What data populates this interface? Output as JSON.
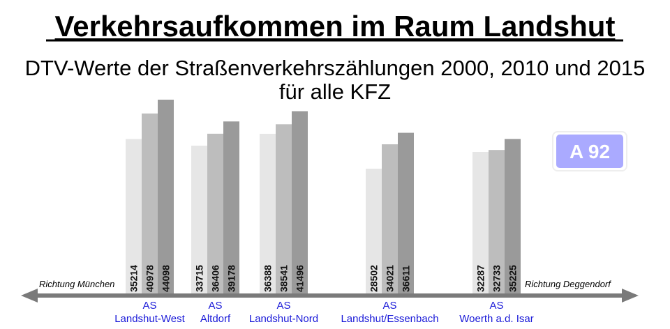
{
  "chart_data": {
    "type": "bar",
    "title": "Verkehrsaufkommen im Raum Landshut",
    "subtitle_line1": "DTV-Werte der Straßenverkehrszählungen 2000, 2010 und 2015",
    "subtitle_line2": "für alle KFZ",
    "categories": [
      {
        "top": "AS",
        "bottom": "Landshut-West"
      },
      {
        "top": "AS",
        "bottom": "Altdorf"
      },
      {
        "top": "AS",
        "bottom": "Landshut-Nord"
      },
      {
        "top": "AS",
        "bottom": "Landshut/Essenbach"
      },
      {
        "top": "AS",
        "bottom": "Woerth a.d. Isar"
      }
    ],
    "series": [
      {
        "name": "2000",
        "color": "#e6e6e6",
        "values": [
          35214,
          33715,
          36388,
          28502,
          32287
        ]
      },
      {
        "name": "2010",
        "color": "#bdbdbd",
        "values": [
          40978,
          36406,
          38541,
          34021,
          32733
        ]
      },
      {
        "name": "2015",
        "color": "#9a9a9a",
        "values": [
          44098,
          39178,
          41496,
          36611,
          35225
        ]
      }
    ],
    "left_direction": "Richtung München",
    "right_direction": "Richtung Deggendorf",
    "road_badge": "A 92",
    "badge_color": "#aaaaff",
    "category_color": "#1a1ad8",
    "ylim": [
      0,
      44098
    ],
    "grid": false
  }
}
